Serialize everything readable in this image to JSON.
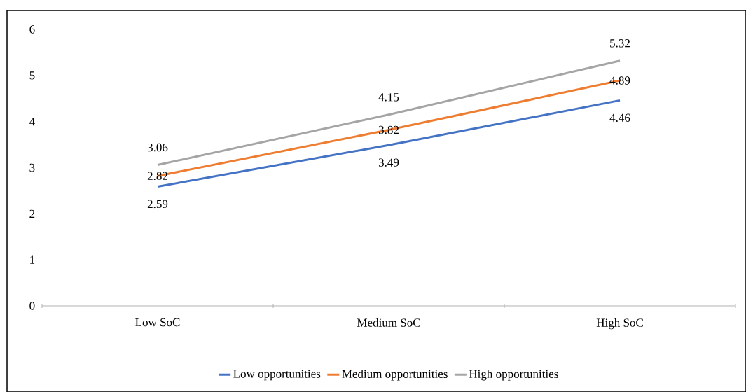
{
  "chart_data": {
    "type": "line",
    "categories": [
      "Low SoC",
      "Medium SoC",
      "High SoC"
    ],
    "series": [
      {
        "name": "Low opportunities",
        "color": "#4472c4",
        "values": [
          2.59,
          3.49,
          4.46
        ]
      },
      {
        "name": "Medium opportunities",
        "color": "#ed7d31",
        "values": [
          2.82,
          3.82,
          4.89
        ]
      },
      {
        "name": "High opportunities",
        "color": "#a5a5a5",
        "values": [
          3.06,
          4.15,
          5.32
        ]
      }
    ],
    "ylim": [
      0,
      6
    ],
    "yticks": [
      0,
      1,
      2,
      3,
      4,
      5,
      6
    ],
    "data_labels": true,
    "legend": "bottom",
    "grid": false,
    "marker": "none",
    "line_style": "solid"
  }
}
